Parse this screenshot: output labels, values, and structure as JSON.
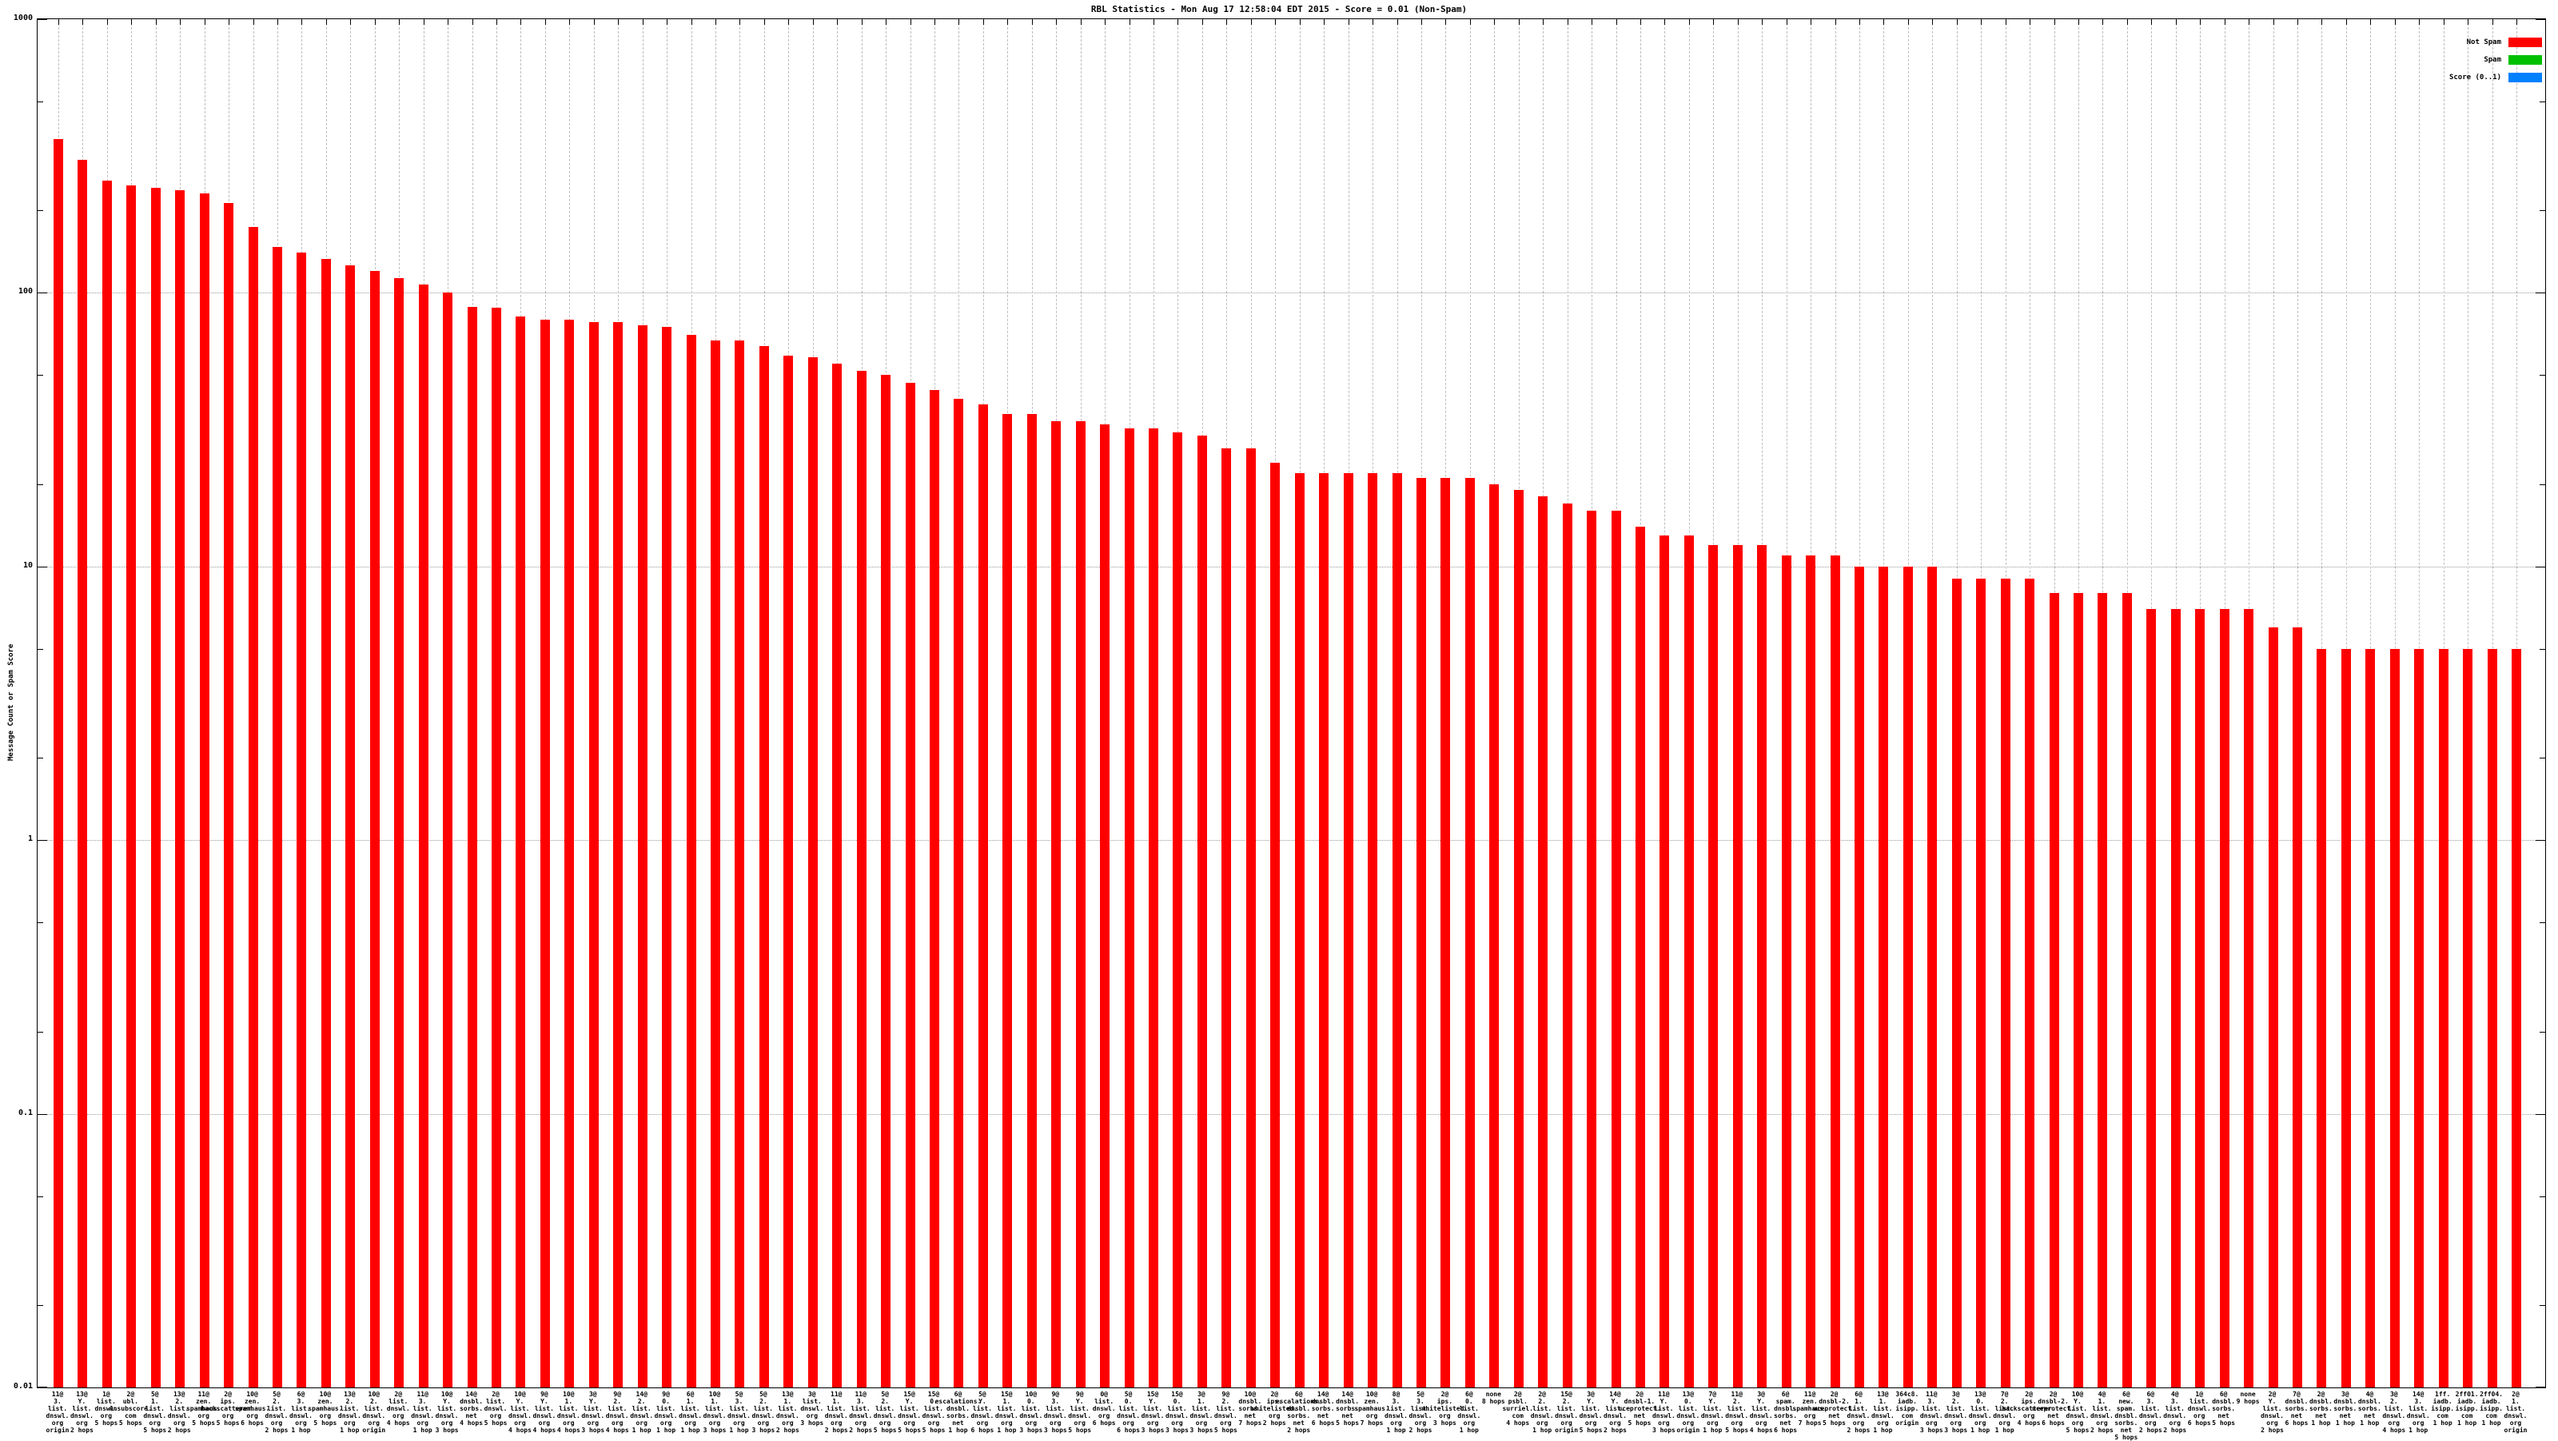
{
  "title": "RBL Statistics - Mon Aug 17 12:58:04 EDT 2015 - Score = 0.01 (Non-Spam)",
  "y_axis": {
    "label": "Message Count or Spam Score",
    "ticks": [
      {
        "text": "1000",
        "value": 1000
      },
      {
        "text": "100",
        "value": 100
      },
      {
        "text": "10",
        "value": 10
      },
      {
        "text": "1",
        "value": 1
      },
      {
        "text": "0.1",
        "value": 0.1
      },
      {
        "text": "0.01",
        "value": 0.01
      }
    ]
  },
  "legend": [
    {
      "label": "Not Spam",
      "color": "#ff0000"
    },
    {
      "label": "Spam",
      "color": "#00c000"
    },
    {
      "label": "Score (0..1)",
      "color": "#0080ff"
    }
  ],
  "colors": {
    "not_spam": "#ff0000",
    "spam": "#00c000",
    "score": "#0080ff",
    "grid": "#bdbdbd"
  },
  "chart_data": {
    "type": "bar",
    "scale": "log",
    "title": "RBL Statistics - Mon Aug 17 12:58:04 EDT 2015 - Score = 0.01 (Non-Spam)",
    "xlabel": "",
    "ylabel": "Message Count or Spam Score",
    "ylim": [
      0.01,
      1000
    ],
    "grid": true,
    "legend_position": "top-right-outside",
    "series_name": "Not Spam",
    "bars": [
      {
        "label": "11@3.list.dnswl.org origin",
        "value": 365
      },
      {
        "label": "13@Y.list.dnswl.org 2 hops",
        "value": 307
      },
      {
        "label": "1@list.dnswl.org 5 hops",
        "value": 257
      },
      {
        "label": "2@ubl.unsubscore.com 5 hops",
        "value": 247
      },
      {
        "label": "5@1.list.dnswl.org 5 hops",
        "value": 242
      },
      {
        "label": "13@2.list.dnswl.org 2 hops",
        "value": 237
      },
      {
        "label": "11@zen.spamhaus.org 5 hops",
        "value": 231
      },
      {
        "label": "2@ips.backscatterer.org 5 hops",
        "value": 213
      },
      {
        "label": "10@zen.spamhaus.org 6 hops",
        "value": 174
      },
      {
        "label": "5@2.list.dnswl.org 2 hops",
        "value": 147
      },
      {
        "label": "6@3.list.dnswl.org 1 hop",
        "value": 140
      },
      {
        "label": "10@zen.spamhaus.org 5 hops",
        "value": 133
      },
      {
        "label": "13@2.list.dnswl.org 1 hop",
        "value": 126
      },
      {
        "label": "10@2.list.dnswl.org origin",
        "value": 120
      },
      {
        "label": "2@list.dnswl.org 4 hops",
        "value": 113
      },
      {
        "label": "11@3.list.dnswl.org 1 hop",
        "value": 107
      },
      {
        "label": "10@Y.list.dnswl.org 3 hops",
        "value": 100
      },
      {
        "label": "14@dnsbl.sorbs.net 4 hops",
        "value": 89
      },
      {
        "label": "2@list.dnswl.org 5 hops",
        "value": 88
      },
      {
        "label": "10@Y.list.dnswl.org 4 hops",
        "value": 82
      },
      {
        "label": "9@Y.list.dnswl.org 4 hops",
        "value": 80
      },
      {
        "label": "10@1.list.dnswl.org 4 hops",
        "value": 80
      },
      {
        "label": "3@Y.list.dnswl.org 3 hops",
        "value": 78
      },
      {
        "label": "9@2.list.dnswl.org 4 hops",
        "value": 78
      },
      {
        "label": "14@2.list.dnswl.org 1 hop",
        "value": 76
      },
      {
        "label": "9@0.list.dnswl.org 1 hop",
        "value": 75
      },
      {
        "label": "6@1.list.dnswl.org 1 hop",
        "value": 70
      },
      {
        "label": "10@1.list.dnswl.org 3 hops",
        "value": 67
      },
      {
        "label": "5@3.list.dnswl.org 1 hop",
        "value": 67
      },
      {
        "label": "5@2.list.dnswl.org 3 hops",
        "value": 64
      },
      {
        "label": "13@1.list.dnswl.org 2 hops",
        "value": 59
      },
      {
        "label": "3@list.dnswl.org 3 hops",
        "value": 58
      },
      {
        "label": "11@1.list.dnswl.org 2 hops",
        "value": 55
      },
      {
        "label": "11@3.list.dnswl.org 2 hops",
        "value": 52
      },
      {
        "label": "5@2.list.dnswl.org 5 hops",
        "value": 50
      },
      {
        "label": "15@Y.list.dnswl.org 5 hops",
        "value": 47
      },
      {
        "label": "15@0.list.dnswl.org 5 hops",
        "value": 44
      },
      {
        "label": "6@escalations.dnsbl.sorbs.net 1 hop",
        "value": 41
      },
      {
        "label": "5@Y.list.dnswl.org 6 hops",
        "value": 39
      },
      {
        "label": "15@1.list.dnswl.org 1 hop",
        "value": 36
      },
      {
        "label": "10@0.list.dnswl.org 3 hops",
        "value": 36
      },
      {
        "label": "9@3.list.dnswl.org 3 hops",
        "value": 34
      },
      {
        "label": "9@Y.list.dnswl.org 5 hops",
        "value": 34
      },
      {
        "label": "0@list.dnswl.org 6 hops",
        "value": 33
      },
      {
        "label": "5@0.list.dnswl.org 6 hops",
        "value": 32
      },
      {
        "label": "15@Y.list.dnswl.org 3 hops",
        "value": 32
      },
      {
        "label": "15@0.list.dnswl.org 3 hops",
        "value": 31
      },
      {
        "label": "3@1.list.dnswl.org 3 hops",
        "value": 30
      },
      {
        "label": "9@2.list.dnswl.org 5 hops",
        "value": 27
      },
      {
        "label": "10@dnsbl.sorbs.net 7 hops",
        "value": 27
      },
      {
        "label": "2@ips.whitelisted.org 2 hops",
        "value": 24
      },
      {
        "label": "6@escalations.dnsbl.sorbs.net 2 hops",
        "value": 22
      },
      {
        "label": "14@dnsbl.sorbs.net 6 hops",
        "value": 22
      },
      {
        "label": "14@dnsbl.sorbs.net 5 hops",
        "value": 22
      },
      {
        "label": "10@zen.spamhaus.org 7 hops",
        "value": 22
      },
      {
        "label": "8@3.list.dnswl.org 1 hop",
        "value": 22
      },
      {
        "label": "5@3.list.dnswl.org 2 hops",
        "value": 21
      },
      {
        "label": "2@ips.whitelisted.org 3 hops",
        "value": 21
      },
      {
        "label": "6@0.list.dnswl.org 1 hop",
        "value": 21
      },
      {
        "label": "none 8 hops",
        "value": 20
      },
      {
        "label": "2@psbl.surriel.com 4 hops",
        "value": 19
      },
      {
        "label": "2@2.list.dnswl.org 1 hop",
        "value": 18
      },
      {
        "label": "15@2.list.dnswl.org origin",
        "value": 17
      },
      {
        "label": "3@Y.list.dnswl.org 5 hops",
        "value": 16
      },
      {
        "label": "14@Y.list.dnswl.org 2 hops",
        "value": 16
      },
      {
        "label": "2@dnsbl-1.uceprotect.net 5 hops",
        "value": 14
      },
      {
        "label": "11@Y.list.dnswl.org 3 hops",
        "value": 13
      },
      {
        "label": "13@0.list.dnswl.org origin",
        "value": 13
      },
      {
        "label": "7@Y.list.dnswl.org 1 hop",
        "value": 12
      },
      {
        "label": "11@2.list.dnswl.org 5 hops",
        "value": 12
      },
      {
        "label": "3@Y.list.dnswl.org 4 hops",
        "value": 12
      },
      {
        "label": "6@spam.dnsbl.sorbs.net 6 hops",
        "value": 11
      },
      {
        "label": "11@zen.spamhaus.org 7 hops",
        "value": 11
      },
      {
        "label": "2@dnsbl-2.uceprotect.net 5 hops",
        "value": 11
      },
      {
        "label": "6@1.list.dnswl.org 2 hops",
        "value": 10
      },
      {
        "label": "13@1.list.dnswl.org 1 hop",
        "value": 10
      },
      {
        "label": "364c8.iadb.isipp.com origin",
        "value": 10
      },
      {
        "label": "11@3.list.dnswl.org 3 hops",
        "value": 10
      },
      {
        "label": "3@2.list.dnswl.org 3 hops",
        "value": 9
      },
      {
        "label": "13@0.list.dnswl.org 1 hop",
        "value": 9
      },
      {
        "label": "7@2.list.dnswl.org 1 hop",
        "value": 9
      },
      {
        "label": "2@ips.backscatterer.org 4 hops",
        "value": 9
      },
      {
        "label": "2@dnsbl-2.uceprotect.net 6 hops",
        "value": 8
      },
      {
        "label": "10@Y.list.dnswl.org 5 hops",
        "value": 8
      },
      {
        "label": "4@1.list.dnswl.org 2 hops",
        "value": 8
      },
      {
        "label": "6@new.spam.dnsbl.sorbs.net 5 hops",
        "value": 8
      },
      {
        "label": "6@3.list.dnswl.org 2 hops",
        "value": 7
      },
      {
        "label": "4@3.list.dnswl.org 2 hops",
        "value": 7
      },
      {
        "label": "1@list.dnswl.org 6 hops",
        "value": 7
      },
      {
        "label": "6@dnsbl.sorbs.net 5 hops",
        "value": 7
      },
      {
        "label": "none 9 hops",
        "value": 7
      },
      {
        "label": "2@Y.list.dnswl.org 2 hops",
        "value": 6
      },
      {
        "label": "7@dnsbl.sorbs.net 6 hops",
        "value": 6
      },
      {
        "label": "2@dnsbl.sorbs.net 1 hop",
        "value": 5
      },
      {
        "label": "3@dnsbl.sorbs.net 1 hop",
        "value": 5
      },
      {
        "label": "4@dnsbl.sorbs.net 1 hop",
        "value": 5
      },
      {
        "label": "3@2.list.dnswl.org 4 hops",
        "value": 5
      },
      {
        "label": "14@3.list.dnswl.org 1 hop",
        "value": 5
      },
      {
        "label": "1ff.iadb.isipp.com 1 hop",
        "value": 5
      },
      {
        "label": "2ff01.iadb.isipp.com 1 hop",
        "value": 5
      },
      {
        "label": "2ff04.iadb.isipp.com 1 hop",
        "value": 5
      },
      {
        "label": "2@1.list.dnswl.org origin",
        "value": 5
      }
    ]
  }
}
